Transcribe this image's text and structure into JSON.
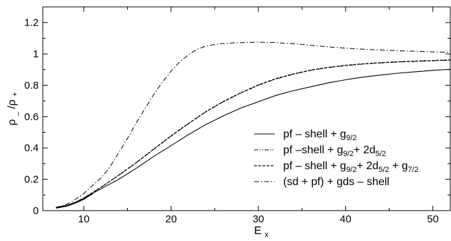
{
  "chart_data": {
    "type": "line",
    "xlabel": {
      "main": "E",
      "sub": "x"
    },
    "ylabel": {
      "p1": "ρ",
      "s1": "_",
      "p2": "/ρ",
      "s2": "+"
    },
    "xlim": [
      5.3,
      52
    ],
    "ylim": [
      0,
      1.3
    ],
    "xticks": [
      10,
      20,
      30,
      40,
      50
    ],
    "yticks": [
      0,
      0.2,
      0.4,
      0.6,
      0.8,
      1,
      1.2
    ],
    "yticks_labels": [
      "0",
      "0.2",
      "0.4",
      "0.6",
      "0.8",
      "1",
      "1.2"
    ],
    "grid": false,
    "legend_position": "bottom-right",
    "series": [
      {
        "style": "solid",
        "legend": [
          {
            "t": "pf – shell + g"
          },
          {
            "t": "9/2",
            "sub": true
          }
        ],
        "x": [
          6.8,
          8,
          9,
          10,
          11,
          12,
          14,
          16,
          18,
          20,
          22,
          24,
          26,
          28,
          30,
          32,
          34,
          36,
          38,
          40,
          42,
          44,
          46,
          48,
          50,
          52
        ],
        "y": [
          0.018,
          0.03,
          0.05,
          0.075,
          0.11,
          0.14,
          0.2,
          0.27,
          0.345,
          0.415,
          0.485,
          0.55,
          0.605,
          0.655,
          0.695,
          0.735,
          0.765,
          0.79,
          0.815,
          0.835,
          0.852,
          0.865,
          0.877,
          0.886,
          0.895,
          0.902
        ]
      },
      {
        "style": "dashdotdot",
        "legend": [
          {
            "t": "pf –shell + "
          },
          {
            "t": "g"
          },
          {
            "t": "9/2",
            "sub": true
          },
          {
            "t": "+ 2d"
          },
          {
            "t": "5/2",
            "sub": true
          }
        ],
        "x": [
          6.8,
          8,
          9,
          10,
          11,
          12,
          14,
          16,
          18,
          20,
          22,
          24,
          26,
          28,
          30,
          32,
          34,
          36,
          38,
          40,
          42,
          44,
          46,
          48,
          50,
          52
        ],
        "y": [
          0.018,
          0.032,
          0.052,
          0.08,
          0.115,
          0.15,
          0.225,
          0.305,
          0.39,
          0.475,
          0.555,
          0.63,
          0.695,
          0.75,
          0.8,
          0.84,
          0.87,
          0.895,
          0.912,
          0.925,
          0.935,
          0.942,
          0.948,
          0.952,
          0.956,
          0.96
        ]
      },
      {
        "style": "dashed",
        "legend": [
          {
            "t": "pf – shell + "
          },
          {
            "t": "g"
          },
          {
            "t": "9/2",
            "sub": true
          },
          {
            "t": "+ 2d"
          },
          {
            "t": "5/2",
            "sub": true
          },
          {
            "t": " + g"
          },
          {
            "t": "7/2",
            "sub": true
          }
        ],
        "x": [
          6.8,
          8,
          9,
          10,
          11,
          12,
          14,
          16,
          18,
          20,
          22,
          24,
          26,
          28,
          30,
          32,
          34,
          36,
          38,
          40,
          42,
          44,
          46,
          48,
          50,
          52
        ],
        "y": [
          0.018,
          0.032,
          0.052,
          0.08,
          0.115,
          0.15,
          0.226,
          0.306,
          0.392,
          0.477,
          0.557,
          0.632,
          0.697,
          0.752,
          0.802,
          0.842,
          0.872,
          0.897,
          0.914,
          0.927,
          0.937,
          0.944,
          0.95,
          0.954,
          0.958,
          0.962
        ]
      },
      {
        "style": "dashdot",
        "legend": [
          {
            "t": "(sd + pf)  + gds – shell"
          }
        ],
        "x": [
          6.8,
          8,
          9,
          10,
          11,
          12,
          13,
          14,
          15,
          16,
          17,
          18,
          19,
          20,
          21,
          22,
          23,
          24,
          25,
          26,
          27,
          28,
          30,
          32,
          34,
          36,
          38,
          40,
          42,
          44,
          46,
          48,
          50,
          52
        ],
        "y": [
          0.02,
          0.04,
          0.07,
          0.11,
          0.16,
          0.21,
          0.28,
          0.37,
          0.46,
          0.56,
          0.65,
          0.74,
          0.82,
          0.89,
          0.95,
          0.995,
          1.03,
          1.05,
          1.06,
          1.067,
          1.07,
          1.072,
          1.075,
          1.072,
          1.065,
          1.055,
          1.045,
          1.037,
          1.03,
          1.025,
          1.02,
          1.017,
          1.013,
          1.01
        ]
      }
    ]
  }
}
